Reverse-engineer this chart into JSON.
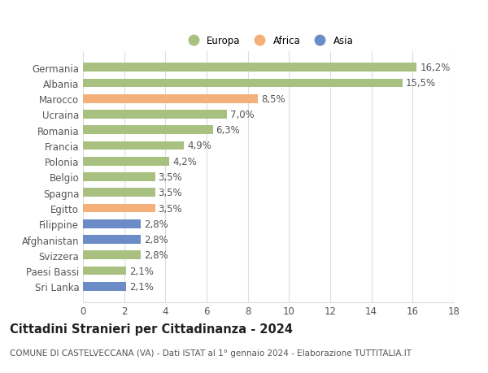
{
  "categories": [
    "Germania",
    "Albania",
    "Marocco",
    "Ucraina",
    "Romania",
    "Francia",
    "Polonia",
    "Belgio",
    "Spagna",
    "Egitto",
    "Filippine",
    "Afghanistan",
    "Svizzera",
    "Paesi Bassi",
    "Sri Lanka"
  ],
  "values": [
    16.2,
    15.5,
    8.5,
    7.0,
    6.3,
    4.9,
    4.2,
    3.5,
    3.5,
    3.5,
    2.8,
    2.8,
    2.8,
    2.1,
    2.1
  ],
  "labels": [
    "16,2%",
    "15,5%",
    "8,5%",
    "7,0%",
    "6,3%",
    "4,9%",
    "4,2%",
    "3,5%",
    "3,5%",
    "3,5%",
    "2,8%",
    "2,8%",
    "2,8%",
    "2,1%",
    "2,1%"
  ],
  "continents": [
    "Europa",
    "Europa",
    "Africa",
    "Europa",
    "Europa",
    "Europa",
    "Europa",
    "Europa",
    "Europa",
    "Africa",
    "Asia",
    "Asia",
    "Europa",
    "Europa",
    "Asia"
  ],
  "colors": {
    "Europa": "#a8c080",
    "Africa": "#f5b07a",
    "Asia": "#6b8cc7"
  },
  "legend_items": [
    "Europa",
    "Africa",
    "Asia"
  ],
  "xlim": [
    0,
    18
  ],
  "xticks": [
    0,
    2,
    4,
    6,
    8,
    10,
    12,
    14,
    16,
    18
  ],
  "title": "Cittadini Stranieri per Cittadinanza - 2024",
  "subtitle": "COMUNE DI CASTELVECCANA (VA) - Dati ISTAT al 1° gennaio 2024 - Elaborazione TUTTITALIA.IT",
  "background_color": "#ffffff",
  "bar_height": 0.55,
  "label_fontsize": 8.5,
  "ytick_fontsize": 8.5,
  "xtick_fontsize": 8.5,
  "title_fontsize": 10.5,
  "subtitle_fontsize": 7.5
}
